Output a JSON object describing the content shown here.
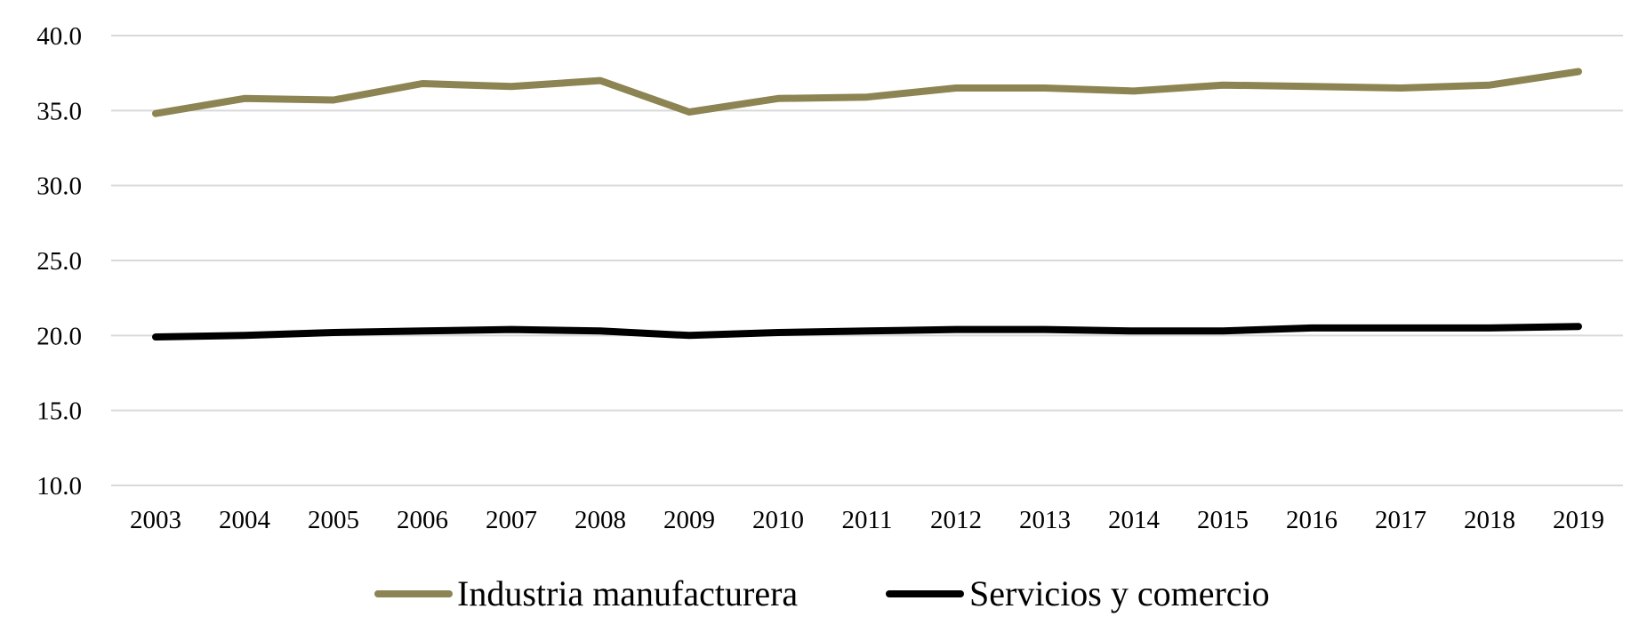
{
  "chart_data": {
    "type": "line",
    "title": "",
    "xlabel": "",
    "ylabel": "",
    "x": [
      "2003",
      "2004",
      "2005",
      "2006",
      "2007",
      "2008",
      "2009",
      "2010",
      "2011",
      "2012",
      "2013",
      "2014",
      "2015",
      "2016",
      "2017",
      "2018",
      "2019"
    ],
    "yticks": [
      "10.0",
      "15.0",
      "20.0",
      "25.0",
      "30.0",
      "35.0",
      "40.0"
    ],
    "ylim": [
      10,
      40
    ],
    "grid": "horizontal",
    "legend_position": "bottom",
    "series": [
      {
        "name": "Industria manufacturera",
        "color": "#8c8452",
        "values": [
          34.8,
          35.8,
          35.7,
          36.8,
          36.6,
          37.0,
          34.9,
          35.8,
          35.9,
          36.5,
          36.5,
          36.3,
          36.7,
          36.6,
          36.5,
          36.7,
          37.6
        ]
      },
      {
        "name": "Servicios y comercio",
        "color": "#000000",
        "values": [
          19.9,
          20.0,
          20.2,
          20.3,
          20.4,
          20.3,
          20.0,
          20.2,
          20.3,
          20.4,
          20.4,
          20.3,
          20.3,
          20.5,
          20.5,
          20.5,
          20.6
        ]
      }
    ]
  }
}
